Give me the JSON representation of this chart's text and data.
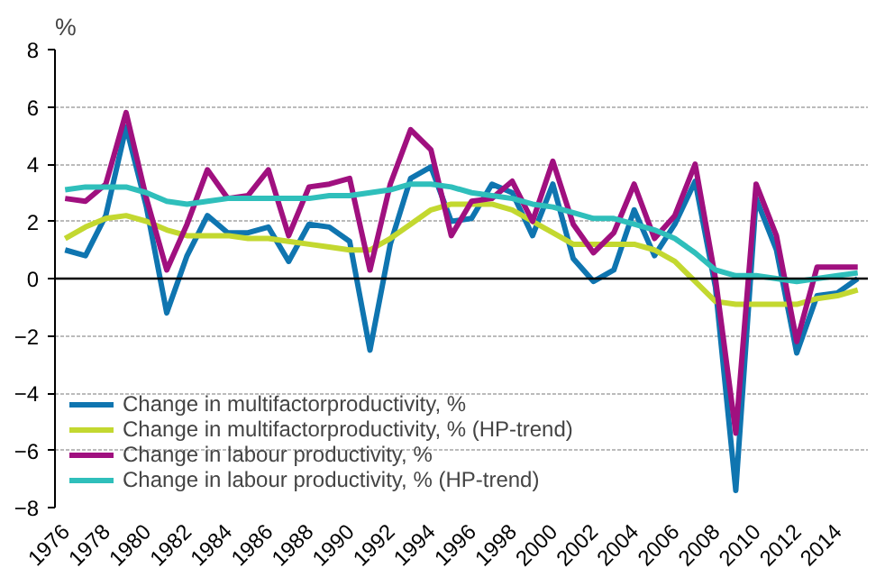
{
  "chart_data": {
    "type": "line",
    "ylabel": "%",
    "x": [
      1976,
      1977,
      1978,
      1979,
      1980,
      1981,
      1982,
      1983,
      1984,
      1985,
      1986,
      1987,
      1988,
      1989,
      1990,
      1991,
      1992,
      1993,
      1994,
      1995,
      1996,
      1997,
      1998,
      1999,
      2000,
      2001,
      2002,
      2003,
      2004,
      2005,
      2006,
      2007,
      2008,
      2009,
      2010,
      2011,
      2012,
      2013,
      2014,
      2015
    ],
    "series": [
      {
        "name": "Change in multifactorproductivity, %",
        "color": "#0f75b0",
        "values": [
          1.0,
          0.8,
          2.2,
          5.3,
          2.5,
          -1.2,
          0.8,
          2.2,
          1.6,
          1.6,
          1.8,
          0.6,
          1.9,
          1.8,
          1.3,
          -2.5,
          1.2,
          3.5,
          3.9,
          2.0,
          2.1,
          3.3,
          3.0,
          1.5,
          3.3,
          0.7,
          -0.1,
          0.3,
          2.4,
          0.8,
          1.9,
          3.4,
          -0.3,
          -7.4,
          2.8,
          1.0,
          -2.6,
          -0.6,
          -0.5,
          0.0
        ]
      },
      {
        "name": "Change in multifactorproductivity, % (HP-trend)",
        "color": "#c3d830",
        "values": [
          1.4,
          1.8,
          2.1,
          2.2,
          2.0,
          1.7,
          1.5,
          1.5,
          1.5,
          1.4,
          1.4,
          1.3,
          1.2,
          1.1,
          1.0,
          1.0,
          1.4,
          1.9,
          2.4,
          2.6,
          2.6,
          2.6,
          2.4,
          2.0,
          1.6,
          1.2,
          1.2,
          1.2,
          1.2,
          1.0,
          0.6,
          -0.1,
          -0.8,
          -0.9,
          -0.9,
          -0.9,
          -0.9,
          -0.7,
          -0.6,
          -0.4
        ]
      },
      {
        "name": "Change in labour productivity, %",
        "color": "#a0107f",
        "values": [
          2.8,
          2.7,
          3.3,
          5.8,
          2.8,
          0.3,
          1.9,
          3.8,
          2.8,
          2.9,
          3.8,
          1.5,
          3.2,
          3.3,
          3.5,
          0.3,
          3.3,
          5.2,
          4.5,
          1.5,
          2.7,
          2.8,
          3.4,
          2.0,
          4.1,
          1.9,
          0.9,
          1.6,
          3.3,
          1.4,
          2.2,
          4.0,
          0.0,
          -5.4,
          3.3,
          1.5,
          -2.2,
          0.4,
          0.4,
          0.4
        ]
      },
      {
        "name": "Change in labour productivity, % (HP-trend)",
        "color": "#2fbfbb",
        "values": [
          3.1,
          3.2,
          3.2,
          3.2,
          3.0,
          2.7,
          2.6,
          2.7,
          2.8,
          2.8,
          2.8,
          2.8,
          2.8,
          2.9,
          2.9,
          3.0,
          3.1,
          3.3,
          3.3,
          3.2,
          3.0,
          2.9,
          2.8,
          2.6,
          2.5,
          2.3,
          2.1,
          2.1,
          1.9,
          1.7,
          1.4,
          0.9,
          0.3,
          0.1,
          0.1,
          0.0,
          -0.1,
          0.0,
          0.1,
          0.2
        ]
      }
    ],
    "xlim": [
      1975.5,
      2015.5
    ],
    "ylim": [
      -8,
      8
    ],
    "xticks": [
      1976,
      1978,
      1980,
      1982,
      1984,
      1986,
      1988,
      1990,
      1992,
      1994,
      1996,
      1998,
      2000,
      2002,
      2004,
      2006,
      2008,
      2010,
      2012,
      2014
    ],
    "yticks": [
      -8,
      -6,
      -4,
      -2,
      0,
      2,
      4,
      6,
      8
    ],
    "ref_lines": [
      {
        "axis": "y",
        "value": 0,
        "color": "#000000"
      }
    ],
    "grid": "y",
    "legend": "bottom left",
    "marker": "none",
    "line_style": "solid"
  }
}
